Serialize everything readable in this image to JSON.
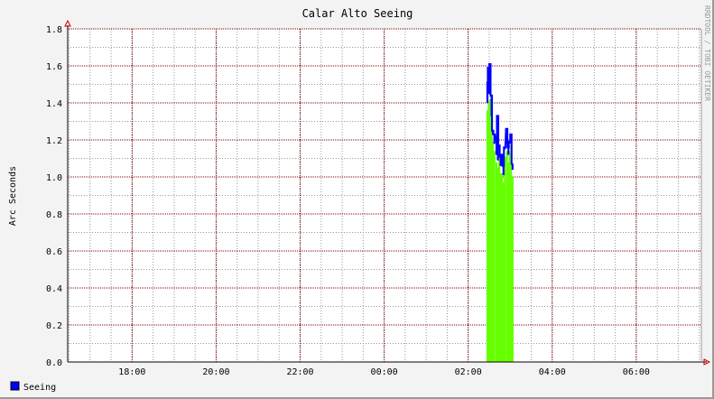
{
  "chart_data": {
    "type": "line",
    "title": "Calar Alto Seeing",
    "ylabel": "Arc Seconds",
    "xlabel": "",
    "watermark": "RRDTOOL / TOBI OETIKER",
    "ylim": [
      0,
      1.8
    ],
    "yticks": [
      "0.0",
      "0.2",
      "0.4",
      "0.6",
      "0.8",
      "1.0",
      "1.2",
      "1.4",
      "1.6",
      "1.8"
    ],
    "xlim": [
      "16:28",
      "07:33"
    ],
    "xticks": [
      "18:00",
      "20:00",
      "22:00",
      "00:00",
      "02:00",
      "04:00",
      "06:00"
    ],
    "grid": true,
    "legend_position": "bottom-left",
    "x": [
      "02:26",
      "02:28",
      "02:30",
      "02:32",
      "02:34",
      "02:36",
      "02:39",
      "02:41",
      "02:43",
      "02:45",
      "02:47",
      "02:49",
      "02:51",
      "02:54",
      "02:56",
      "02:58",
      "03:00",
      "03:02"
    ],
    "series": [
      {
        "name": "Seeing",
        "style": "line",
        "color": "#0000ff",
        "values": [
          1.51,
          1.59,
          1.61,
          1.44,
          1.25,
          1.23,
          1.2,
          1.33,
          1.17,
          1.11,
          1.12,
          1.06,
          1.16,
          1.26,
          1.16,
          1.19,
          1.23,
          1.07
        ]
      },
      {
        "style": "area",
        "color": "#66ff00",
        "values": [
          1.36,
          1.41,
          1.42,
          1.29,
          1.19,
          1.14,
          1.08,
          1.05,
          1.11,
          1.02,
          1.02,
          0.97,
          1.11,
          1.14,
          1.08,
          1.14,
          1.17,
          1.0
        ]
      }
    ]
  }
}
